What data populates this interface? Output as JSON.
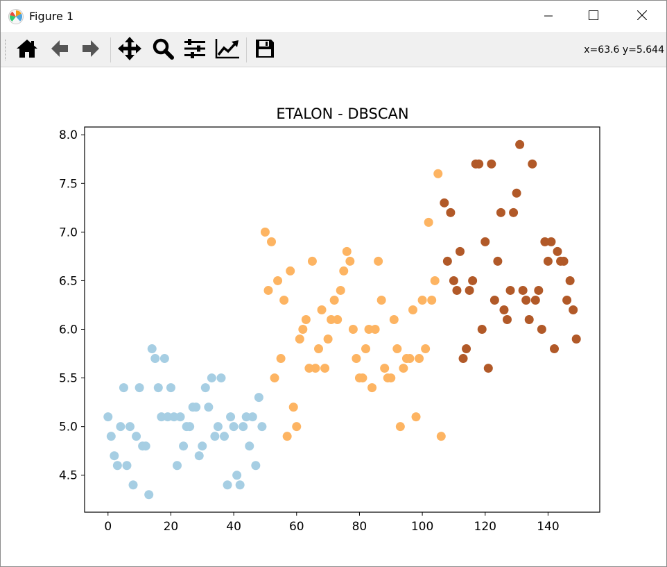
{
  "window": {
    "title": "Figure 1",
    "icons": {
      "app": "matplotlib-icon",
      "minimize": "minimize-icon",
      "maximize": "maximize-icon",
      "close": "close-icon"
    }
  },
  "toolbar": {
    "buttons": [
      {
        "name": "home",
        "icon": "home-icon"
      },
      {
        "name": "back",
        "icon": "arrow-left-icon"
      },
      {
        "name": "forward",
        "icon": "arrow-right-icon"
      },
      {
        "name": "pan",
        "icon": "move-icon"
      },
      {
        "name": "zoom",
        "icon": "zoom-icon"
      },
      {
        "name": "subplots",
        "icon": "sliders-icon"
      },
      {
        "name": "customize",
        "icon": "line-chart-icon"
      },
      {
        "name": "save",
        "icon": "save-icon"
      }
    ],
    "coords": "x=63.6 y=5.644"
  },
  "chart_data": {
    "type": "scatter",
    "title": "ETALON - DBSCAN",
    "xlabel": "",
    "ylabel": "",
    "xlim": [
      -7.45,
      156.45
    ],
    "ylim": [
      4.12,
      8.08
    ],
    "xticks": [
      0,
      20,
      40,
      60,
      80,
      100,
      120,
      140
    ],
    "xtick_labels": [
      "0",
      "20",
      "40",
      "60",
      "80",
      "100",
      "120",
      "140"
    ],
    "yticks": [
      4.5,
      5.0,
      5.5,
      6.0,
      6.5,
      7.0,
      7.5,
      8.0
    ],
    "ytick_labels": [
      "4.5",
      "5.0",
      "5.5",
      "6.0",
      "6.5",
      "7.0",
      "7.5",
      "8.0"
    ],
    "grid": false,
    "series": [
      {
        "color": "#a6cee3",
        "x": [
          0,
          1,
          2,
          3,
          4,
          5,
          6,
          7,
          8,
          9,
          10,
          11,
          12,
          13,
          14,
          15,
          16,
          17,
          18,
          19,
          20,
          21,
          22,
          23,
          24,
          25,
          26,
          27,
          28,
          29,
          30,
          31,
          32,
          33,
          34,
          35,
          36,
          37,
          38,
          39,
          40,
          41,
          42,
          43,
          44,
          45,
          46,
          47,
          48,
          49
        ],
        "y": [
          5.1,
          4.9,
          4.7,
          4.6,
          5.0,
          5.4,
          4.6,
          5.0,
          4.4,
          4.9,
          5.4,
          4.8,
          4.8,
          4.3,
          5.8,
          5.7,
          5.4,
          5.1,
          5.7,
          5.1,
          5.4,
          5.1,
          4.6,
          5.1,
          4.8,
          5.0,
          5.0,
          5.2,
          5.2,
          4.7,
          4.8,
          5.4,
          5.2,
          5.5,
          4.9,
          5.0,
          5.5,
          4.9,
          4.4,
          5.1,
          5.0,
          4.5,
          4.4,
          5.0,
          5.1,
          4.8,
          5.1,
          4.6,
          5.3,
          5.0
        ]
      },
      {
        "color": "#fdb462",
        "x": [
          50,
          51,
          52,
          53,
          54,
          55,
          56,
          57,
          58,
          59,
          60,
          61,
          62,
          63,
          64,
          65,
          66,
          67,
          68,
          69,
          70,
          71,
          72,
          73,
          74,
          75,
          76,
          77,
          78,
          79,
          80,
          81,
          82,
          83,
          84,
          85,
          86,
          87,
          88,
          89,
          90,
          91,
          92,
          93,
          94,
          95,
          96,
          97,
          98,
          99,
          100,
          101,
          102,
          103,
          104,
          105,
          106
        ],
        "y": [
          7.0,
          6.4,
          6.9,
          5.5,
          6.5,
          5.7,
          6.3,
          4.9,
          6.6,
          5.2,
          5.0,
          5.9,
          6.0,
          6.1,
          5.6,
          6.7,
          5.6,
          5.8,
          6.2,
          5.6,
          5.9,
          6.1,
          6.3,
          6.1,
          6.4,
          6.6,
          6.8,
          6.7,
          6.0,
          5.7,
          5.5,
          5.5,
          5.8,
          6.0,
          5.4,
          6.0,
          6.7,
          6.3,
          5.6,
          5.5,
          5.5,
          6.1,
          5.8,
          5.0,
          5.6,
          5.7,
          5.7,
          6.2,
          5.1,
          5.7,
          6.3,
          5.8,
          7.1,
          6.3,
          6.5,
          7.6,
          4.9
        ]
      },
      {
        "color": "#b15928",
        "x": [
          107,
          108,
          109,
          110,
          111,
          112,
          113,
          114,
          115,
          116,
          117,
          118,
          119,
          120,
          121,
          122,
          123,
          124,
          125,
          126,
          127,
          128,
          129,
          130,
          131,
          132,
          133,
          134,
          135,
          136,
          137,
          138,
          139,
          140,
          141,
          142,
          143,
          144,
          145,
          146,
          147,
          148,
          149
        ],
        "y": [
          7.3,
          6.7,
          7.2,
          6.5,
          6.4,
          6.8,
          5.7,
          5.8,
          6.4,
          6.5,
          7.7,
          7.7,
          6.0,
          6.9,
          5.6,
          7.7,
          6.3,
          6.7,
          7.2,
          6.2,
          6.1,
          6.4,
          7.2,
          7.4,
          7.9,
          6.4,
          6.3,
          6.1,
          7.7,
          6.3,
          6.4,
          6.0,
          6.9,
          6.7,
          6.9,
          5.8,
          6.8,
          6.7,
          6.7,
          6.3,
          6.5,
          6.2,
          5.9
        ]
      }
    ]
  }
}
